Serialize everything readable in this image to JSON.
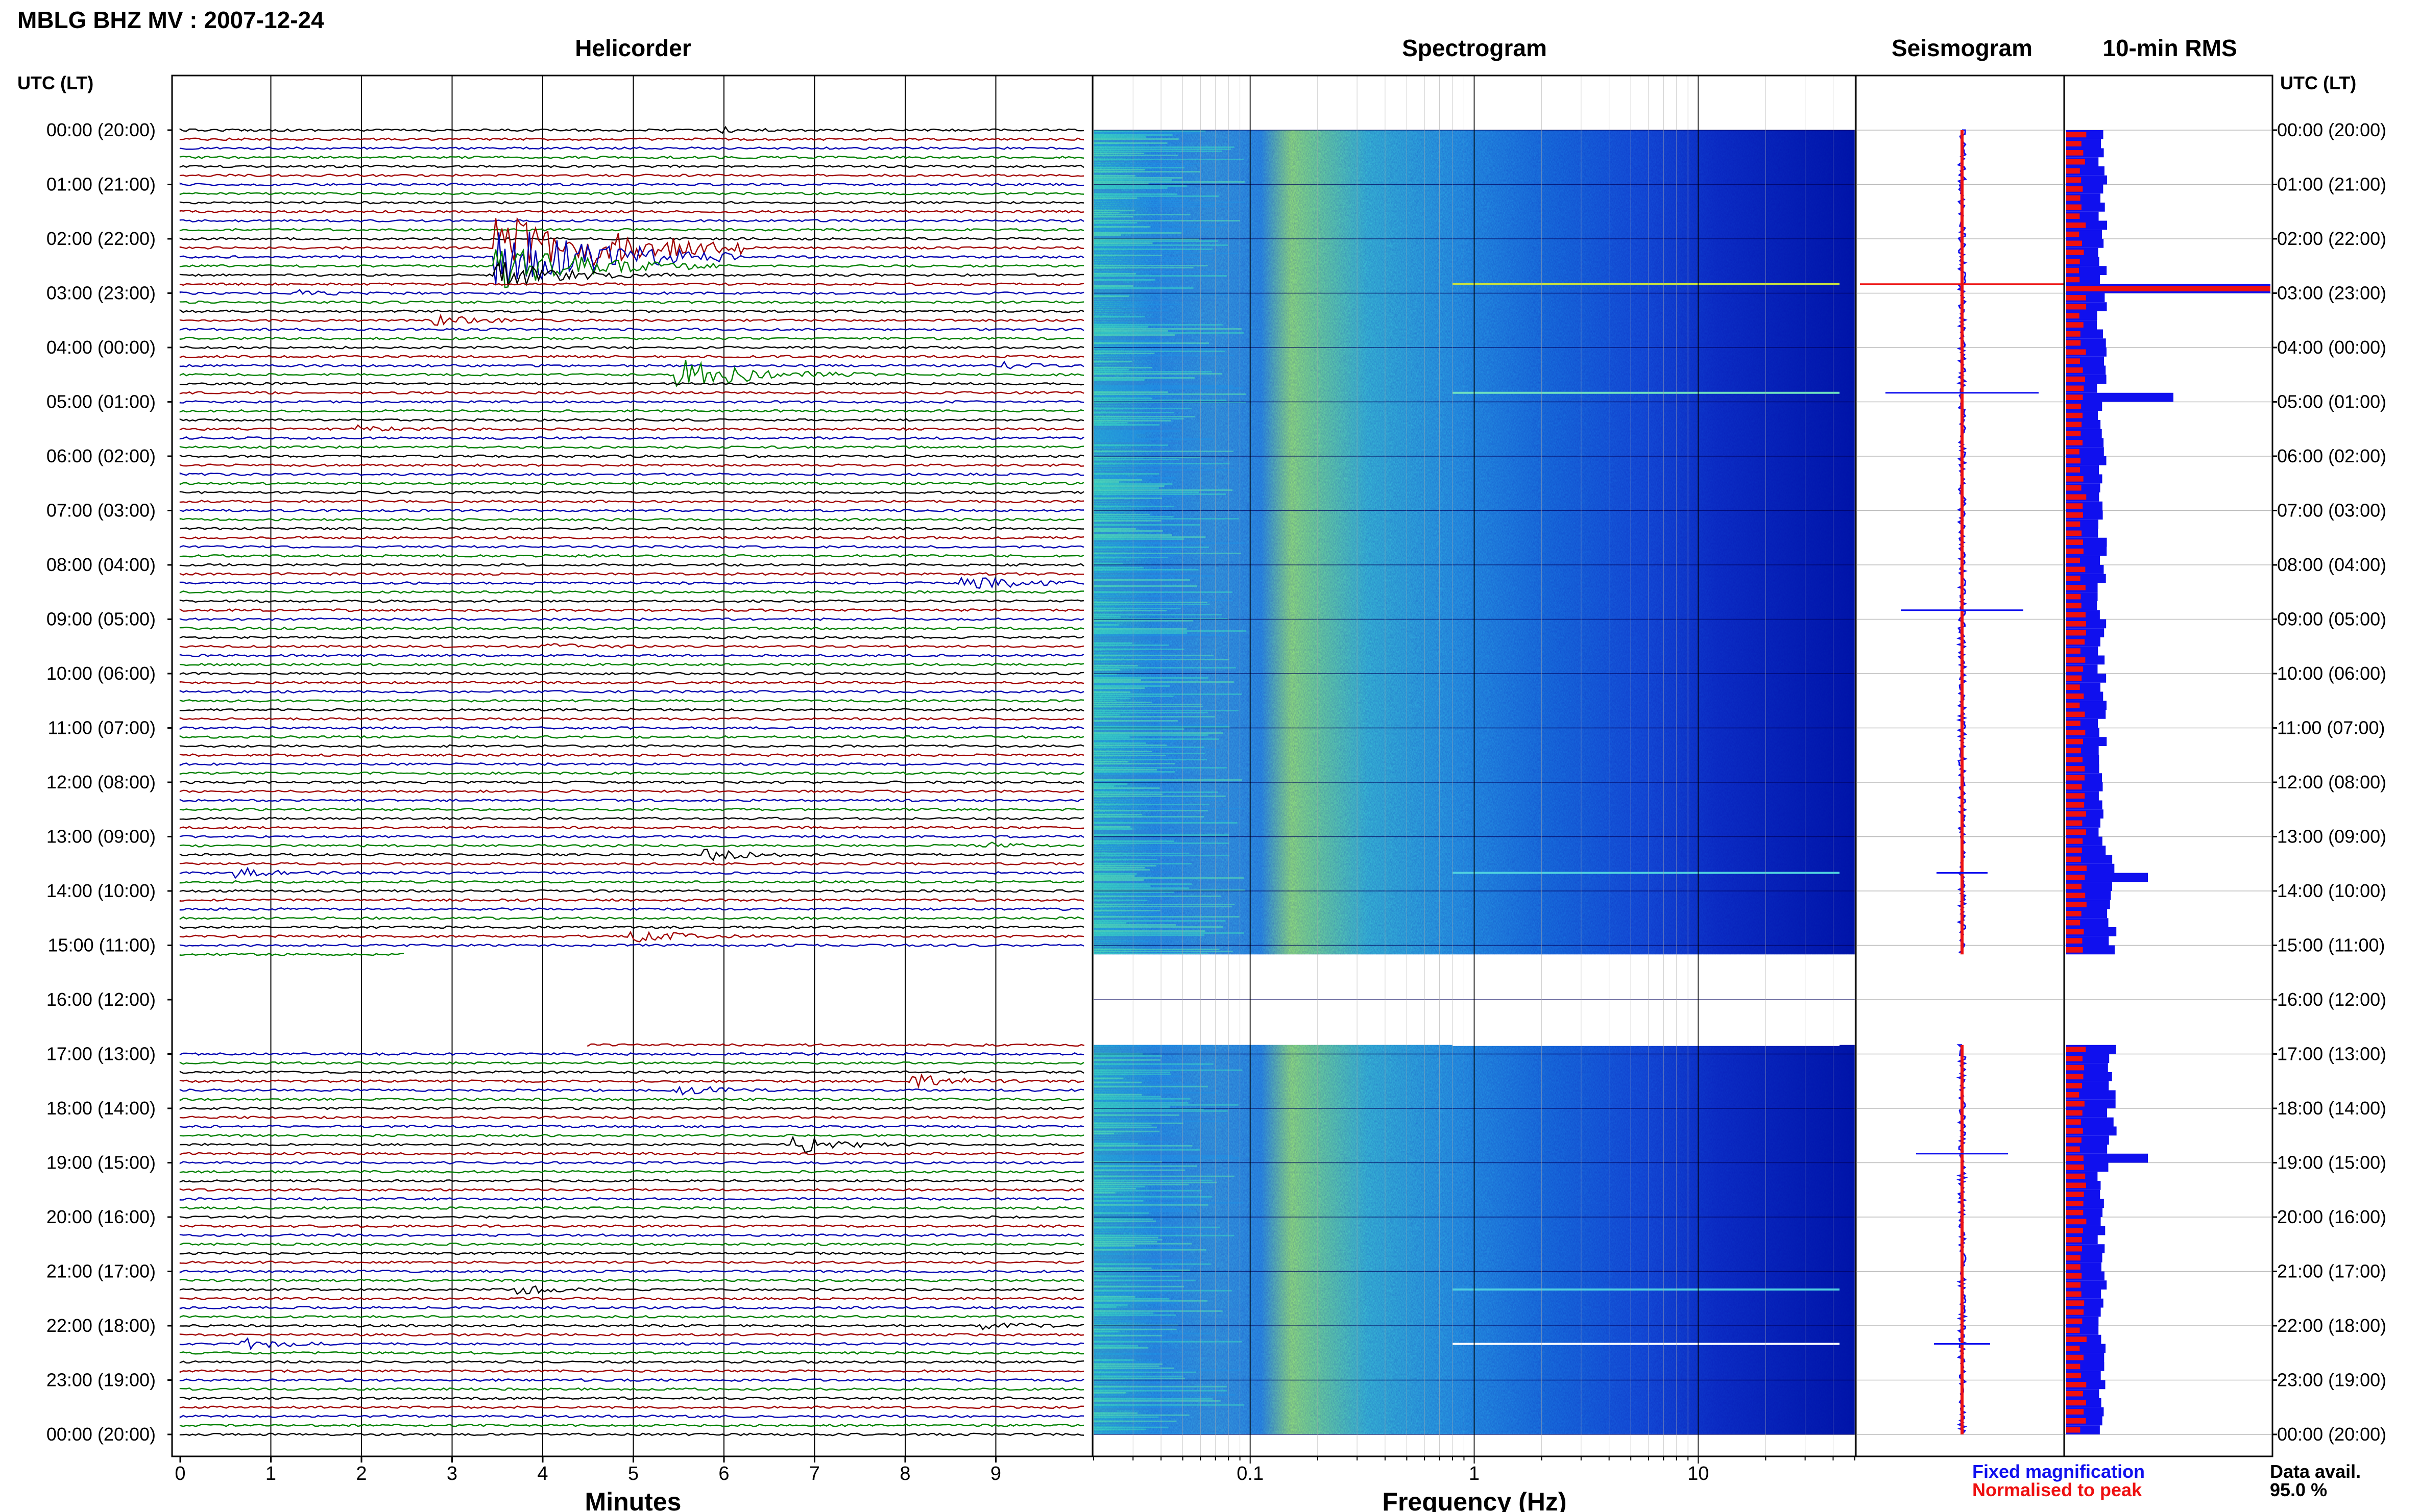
{
  "header": {
    "title": "MBLG BHZ MV : 2007-12-24"
  },
  "panels": {
    "helicorder": "Helicorder",
    "spectrogram": "Spectrogram",
    "seismogram": "Seismogram",
    "rms": "10-min RMS"
  },
  "axes": {
    "utc_label_left": "UTC (LT)",
    "utc_label_right": "UTC (LT)",
    "time_ticks": [
      "00:00 (20:00)",
      "01:00 (21:00)",
      "02:00 (22:00)",
      "03:00 (23:00)",
      "04:00 (00:00)",
      "05:00 (01:00)",
      "06:00 (02:00)",
      "07:00 (03:00)",
      "08:00 (04:00)",
      "09:00 (05:00)",
      "10:00 (06:00)",
      "11:00 (07:00)",
      "12:00 (08:00)",
      "13:00 (09:00)",
      "14:00 (10:00)",
      "15:00 (11:00)",
      "16:00 (12:00)",
      "17:00 (13:00)",
      "18:00 (14:00)",
      "19:00 (15:00)",
      "20:00 (16:00)",
      "21:00 (17:00)",
      "22:00 (18:00)",
      "23:00 (19:00)",
      "00:00 (20:00)"
    ],
    "minutes_label": "Minutes",
    "minute_ticks": [
      "0",
      "1",
      "2",
      "3",
      "4",
      "5",
      "6",
      "7",
      "8",
      "9"
    ],
    "frequency_label": "Frequency (Hz)",
    "frequency_ticks": [
      "0.1",
      "1",
      "10"
    ]
  },
  "legend": {
    "fixed": "Fixed magnification",
    "normalised": "Normalised to peak",
    "fixed_color": "#1010ee",
    "normalised_color": "#ee1010"
  },
  "availability": {
    "label": "Data avail.",
    "value": "95.0 %"
  },
  "colors": {
    "trace_cycle": [
      "#000000",
      "#a00000",
      "#0000b0",
      "#008000"
    ],
    "spectrogram_low": "#00008b",
    "spectrogram_high": "#b4ff50"
  },
  "chart_data": {
    "type": "helicorder",
    "station": "MBLG",
    "channel": "BHZ",
    "network": "MV",
    "date": "2007-12-24",
    "rows_per_hour": 6,
    "minutes_per_row": 10,
    "data_gap_utc": [
      "15:10",
      "16:50"
    ],
    "frequency_range_hz": [
      0.02,
      50
    ],
    "frequency_scale": "log",
    "events": [
      {
        "utc": "00:00",
        "minute": 6.0,
        "amplitude": 0.5
      },
      {
        "utc": "02:10",
        "minute": 3.5,
        "amplitude": 8
      },
      {
        "utc": "02:20",
        "minute": 3.5,
        "amplitude": 7
      },
      {
        "utc": "02:30",
        "minute": 3.5,
        "amplitude": 5
      },
      {
        "utc": "02:40",
        "minute": 3.5,
        "amplitude": 3
      },
      {
        "utc": "03:00",
        "minute": 1.3,
        "amplitude": 0.6
      },
      {
        "utc": "03:30",
        "minute": 2.8,
        "amplitude": 1.2
      },
      {
        "utc": "04:30",
        "minute": 5.5,
        "amplitude": 3.5
      },
      {
        "utc": "04:20",
        "minute": 9.1,
        "amplitude": 0.6
      },
      {
        "utc": "05:30",
        "minute": 2.0,
        "amplitude": 0.7
      },
      {
        "utc": "08:20",
        "minute": 8.6,
        "amplitude": 2
      },
      {
        "utc": "09:30",
        "minute": 4.0,
        "amplitude": 0.7
      },
      {
        "utc": "13:10",
        "minute": 8.8,
        "amplitude": 0.8
      },
      {
        "utc": "13:20",
        "minute": 5.8,
        "amplitude": 1.2
      },
      {
        "utc": "13:40",
        "minute": 0.6,
        "amplitude": 1.2
      },
      {
        "utc": "14:50",
        "minute": 5.0,
        "amplitude": 1.5
      },
      {
        "utc": "17:30",
        "minute": 8.1,
        "amplitude": 1.5
      },
      {
        "utc": "17:40",
        "minute": 5.5,
        "amplitude": 1.2
      },
      {
        "utc": "18:40",
        "minute": 6.8,
        "amplitude": 1.8
      },
      {
        "utc": "21:20",
        "minute": 3.7,
        "amplitude": 1
      },
      {
        "utc": "22:00",
        "minute": 8.9,
        "amplitude": 0.8
      },
      {
        "utc": "22:20",
        "minute": 0.7,
        "amplitude": 1.2
      }
    ],
    "rms_peaks": [
      {
        "utc": "02:50",
        "relative": 3.5
      },
      {
        "utc": "04:50",
        "relative": 1.5
      },
      {
        "utc": "13:40",
        "relative": 1.0
      },
      {
        "utc": "18:50",
        "relative": 1.0
      }
    ]
  }
}
